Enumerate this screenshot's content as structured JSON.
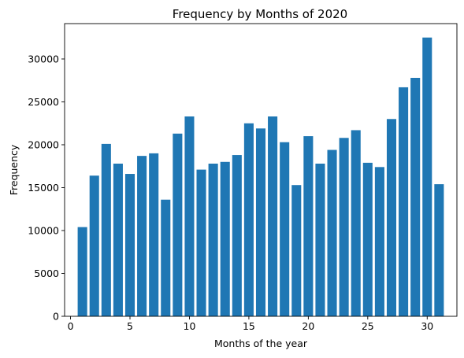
{
  "chart_data": {
    "type": "bar",
    "title": "Frequency by Months of 2020",
    "xlabel": "Months of the year",
    "ylabel": "Frequency",
    "x": [
      1,
      2,
      3,
      4,
      5,
      6,
      7,
      8,
      9,
      10,
      11,
      12,
      13,
      14,
      15,
      16,
      17,
      18,
      19,
      20,
      21,
      22,
      23,
      24,
      25,
      26,
      27,
      28,
      29,
      30,
      31
    ],
    "values": [
      10400,
      16400,
      20100,
      17800,
      16600,
      18700,
      19000,
      13600,
      21300,
      23300,
      17100,
      17800,
      18000,
      18800,
      22500,
      21900,
      23300,
      20300,
      15300,
      21000,
      17800,
      19400,
      20800,
      21700,
      17900,
      17400,
      23000,
      26700,
      27800,
      32500,
      15400
    ],
    "xlim": [
      -0.5,
      32.5
    ],
    "ylim": [
      0,
      34125
    ],
    "xticks": [
      0,
      5,
      10,
      15,
      20,
      25,
      30
    ],
    "yticks": [
      0,
      5000,
      10000,
      15000,
      20000,
      25000,
      30000
    ],
    "bar_color": "#1f77b4",
    "grid": false
  }
}
